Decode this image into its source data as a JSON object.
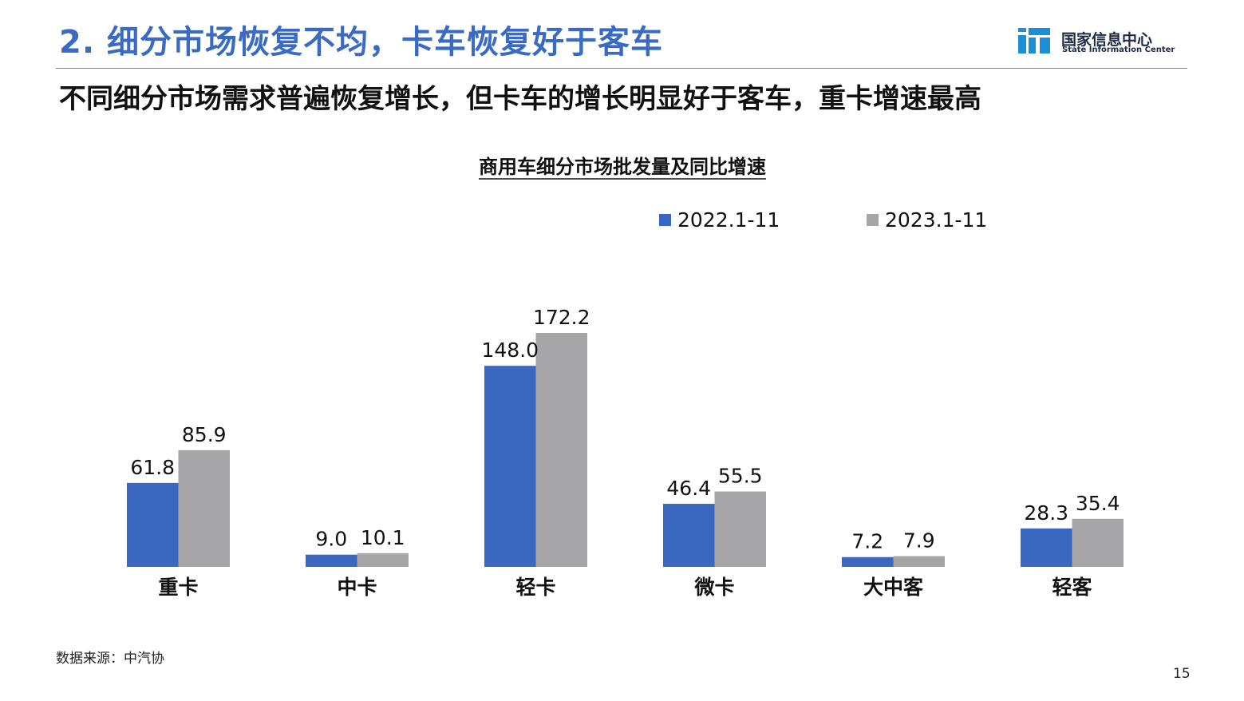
{
  "header": {
    "title": "2. 细分市场恢复不均，卡车恢复好于客车",
    "logo_cn": "国家信息中心",
    "logo_en": "State Information Center"
  },
  "subtitle": "不同细分市场需求普遍恢复增长，但卡车的增长明显好于客车，重卡增速最高",
  "colors": {
    "title_blue": "#3a6bc4",
    "series_2022": "#3a67c0",
    "series_2023": "#a6a6a8",
    "logo_blue": "#1a8fd6"
  },
  "chart_data": {
    "type": "bar",
    "title": "商用车细分市场批发量及同比增速",
    "categories": [
      "重卡",
      "中卡",
      "轻卡",
      "微卡",
      "大中客",
      "轻客"
    ],
    "series": [
      {
        "name": "2022.1-11",
        "values": [
          61.8,
          9.0,
          148.0,
          46.4,
          7.2,
          28.3
        ],
        "labels": [
          "61.8",
          "9.0",
          "148.0",
          "46.4",
          "7.2",
          "28.3"
        ]
      },
      {
        "name": "2023.1-11",
        "values": [
          85.9,
          10.1,
          172.2,
          55.5,
          7.9,
          35.4
        ],
        "labels": [
          "85.9",
          "10.1",
          "172.2",
          "55.5",
          "7.9",
          "35.4"
        ]
      }
    ],
    "legend_position": "top-right",
    "grid": false,
    "ylim": [
      0,
      172.2
    ]
  },
  "footer": {
    "source": "数据来源：中汽协",
    "page": "15"
  }
}
